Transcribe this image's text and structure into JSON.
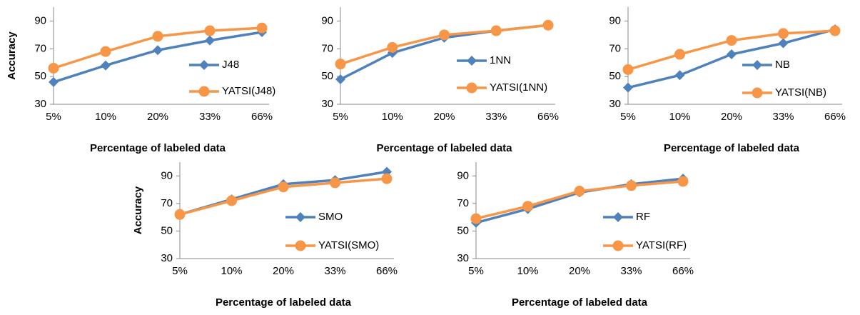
{
  "chart_data": [
    {
      "type": "line",
      "categories": [
        "5%",
        "10%",
        "20%",
        "33%",
        "66%"
      ],
      "y_label": "Accuracy",
      "x_label": "Percentage of labeled data",
      "ylim": [
        30,
        100
      ],
      "yticks": [
        30,
        50,
        70,
        90
      ],
      "legend": "lower right",
      "series": [
        {
          "name": "J48",
          "color": "#4f81bd",
          "marker": "diamond",
          "values": [
            46,
            58,
            69,
            76,
            82
          ]
        },
        {
          "name": "YATSI(J48)",
          "color": "#f79646",
          "marker": "circle",
          "values": [
            56,
            68,
            79,
            83,
            85
          ]
        }
      ]
    },
    {
      "type": "line",
      "categories": [
        "5%",
        "10%",
        "20%",
        "33%",
        "66%"
      ],
      "x_label": "Percentage of labeled data",
      "ylim": [
        30,
        100
      ],
      "yticks": [
        30,
        50,
        70,
        90
      ],
      "legend": "lower right",
      "series": [
        {
          "name": "1NN",
          "color": "#4f81bd",
          "marker": "diamond",
          "values": [
            48,
            67,
            78,
            83,
            87
          ]
        },
        {
          "name": "YATSI(1NN)",
          "color": "#f79646",
          "marker": "circle",
          "values": [
            59,
            71,
            80,
            83,
            87
          ]
        }
      ]
    },
    {
      "type": "line",
      "categories": [
        "5%",
        "10%",
        "20%",
        "33%",
        "66%"
      ],
      "x_label": "Percentage of labeled data",
      "ylim": [
        30,
        100
      ],
      "yticks": [
        30,
        50,
        70,
        90
      ],
      "legend": "lower right",
      "series": [
        {
          "name": "NB",
          "color": "#4f81bd",
          "marker": "diamond",
          "values": [
            42,
            51,
            66,
            74,
            84
          ]
        },
        {
          "name": "YATSI(NB)",
          "color": "#f79646",
          "marker": "circle",
          "values": [
            55,
            66,
            76,
            81,
            83
          ]
        }
      ]
    },
    {
      "type": "line",
      "categories": [
        "5%",
        "10%",
        "20%",
        "33%",
        "66%"
      ],
      "y_label": "Accuracy",
      "x_label": "Percentage of labeled data",
      "ylim": [
        30,
        100
      ],
      "yticks": [
        30,
        50,
        70,
        90
      ],
      "legend": "lower right",
      "series": [
        {
          "name": "SMO",
          "color": "#4f81bd",
          "marker": "diamond",
          "values": [
            62,
            73,
            84,
            87,
            93
          ]
        },
        {
          "name": "YATSI(SMO)",
          "color": "#f79646",
          "marker": "circle",
          "values": [
            62,
            72,
            82,
            85,
            88
          ]
        }
      ]
    },
    {
      "type": "line",
      "categories": [
        "5%",
        "10%",
        "20%",
        "33%",
        "66%"
      ],
      "x_label": "Percentage of labeled data",
      "ylim": [
        30,
        100
      ],
      "yticks": [
        30,
        50,
        70,
        90
      ],
      "legend": "lower right",
      "series": [
        {
          "name": "RF",
          "color": "#4f81bd",
          "marker": "diamond",
          "values": [
            56,
            66,
            78,
            84,
            88
          ]
        },
        {
          "name": "YATSI(RF)",
          "color": "#f79646",
          "marker": "circle",
          "values": [
            59,
            68,
            79,
            83,
            86
          ]
        }
      ]
    }
  ]
}
